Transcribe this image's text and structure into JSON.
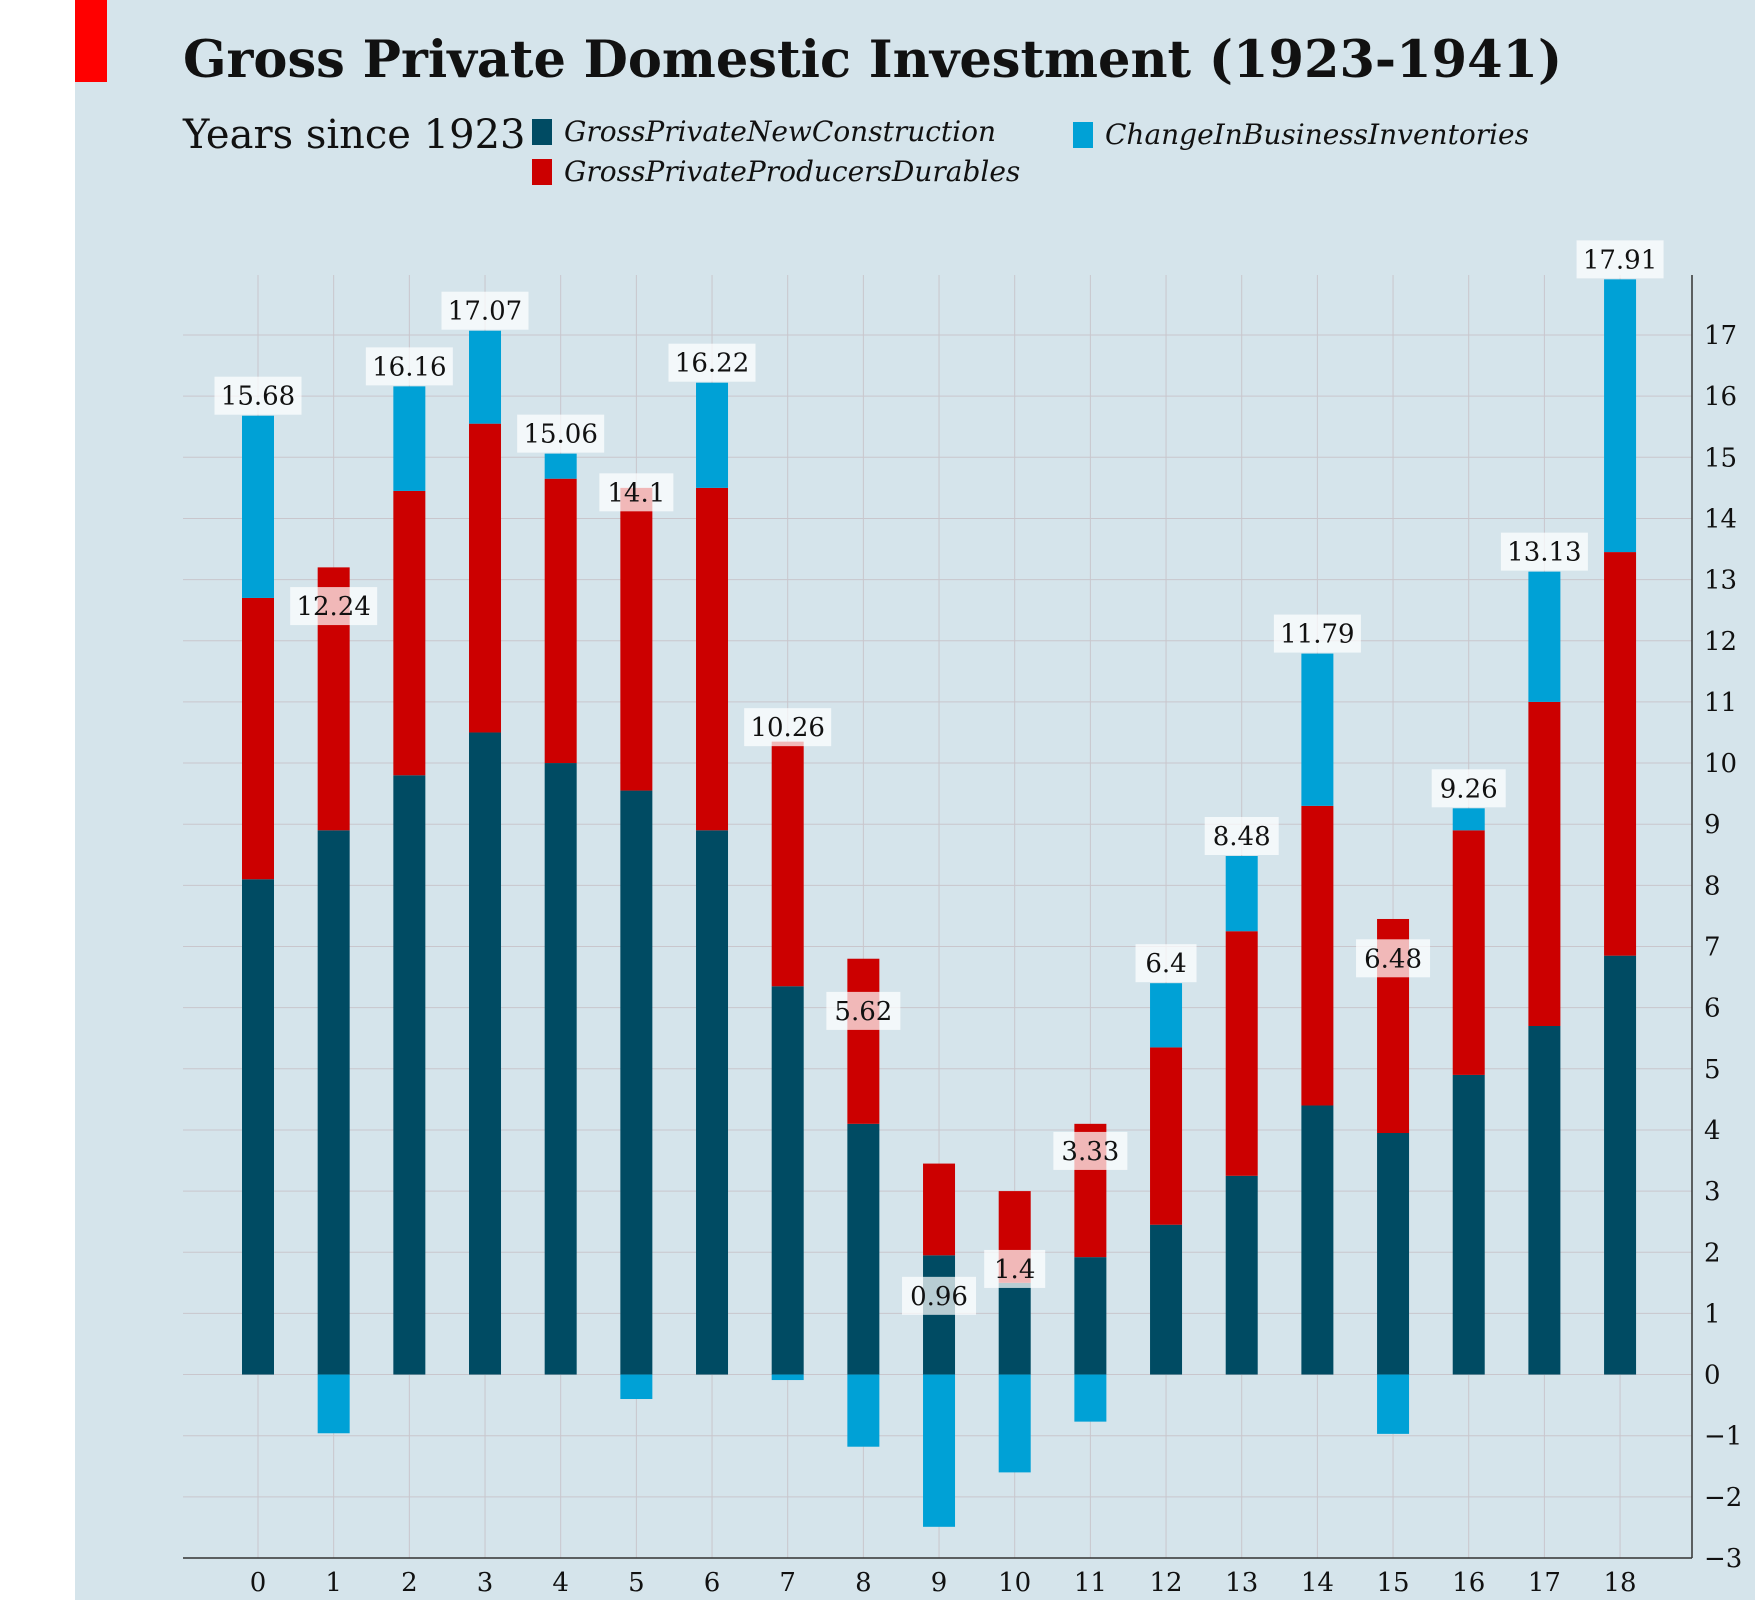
{
  "title": "Gross Private Domestic Investment (1923-1941)",
  "subtitle": "Years since 1923",
  "colors": {
    "panel_background": "#d5e4eb",
    "accent": "#ff0000",
    "construction": "#004b63",
    "producers_durables": "#cc0000",
    "inventories": "#00a1d6"
  },
  "chart_data": {
    "type": "bar",
    "stacked": true,
    "title": "Gross Private Domestic Investment (1923-1941)",
    "xlabel": "Years since 1923",
    "ylabel": "",
    "categories": [
      "0",
      "1",
      "2",
      "3",
      "4",
      "5",
      "6",
      "7",
      "8",
      "9",
      "10",
      "11",
      "12",
      "13",
      "14",
      "15",
      "16",
      "17",
      "18"
    ],
    "ylim": [
      -3,
      18
    ],
    "yticks": [
      "−3",
      "−2",
      "−1",
      "0",
      "1",
      "2",
      "3",
      "4",
      "5",
      "6",
      "7",
      "8",
      "9",
      "10",
      "11",
      "12",
      "13",
      "14",
      "15",
      "16",
      "17"
    ],
    "y_axis_position": "right",
    "grid": true,
    "legend_position": "top",
    "series": [
      {
        "name": "GrossPrivateNewConstruction",
        "color": "#004b63",
        "values": [
          8.1,
          8.9,
          9.8,
          10.5,
          10.0,
          9.55,
          8.9,
          6.35,
          4.1,
          1.95,
          1.5,
          1.92,
          2.45,
          3.25,
          4.4,
          3.95,
          4.9,
          5.7,
          6.85
        ]
      },
      {
        "name": "GrossPrivateProducersDurables",
        "color": "#cc0000",
        "values": [
          4.6,
          4.3,
          4.65,
          5.05,
          4.65,
          4.95,
          5.6,
          4.0,
          2.7,
          1.5,
          1.5,
          2.18,
          2.9,
          4.0,
          4.9,
          3.5,
          4.0,
          5.3,
          6.6
        ]
      },
      {
        "name": "ChangeInBusinessInventories",
        "color": "#00a1d6",
        "values": [
          2.98,
          -0.96,
          1.71,
          1.52,
          0.41,
          -0.4,
          1.72,
          -0.09,
          -1.18,
          -2.49,
          -1.6,
          -0.77,
          1.05,
          1.23,
          2.49,
          -0.97,
          0.36,
          2.13,
          4.46
        ]
      }
    ],
    "totals": [
      "15.68",
      "12.24",
      "16.16",
      "17.07",
      "15.06",
      "14.1",
      "16.22",
      "10.26",
      "5.62",
      "0.96",
      "1.4",
      "3.33",
      "6.4",
      "8.48",
      "11.79",
      "6.48",
      "9.26",
      "13.13",
      "17.91"
    ],
    "totals_numeric": [
      15.68,
      12.24,
      16.16,
      17.07,
      15.06,
      14.1,
      16.22,
      10.26,
      5.62,
      0.96,
      1.4,
      3.33,
      6.4,
      8.48,
      11.79,
      6.48,
      9.26,
      13.13,
      17.91
    ]
  }
}
